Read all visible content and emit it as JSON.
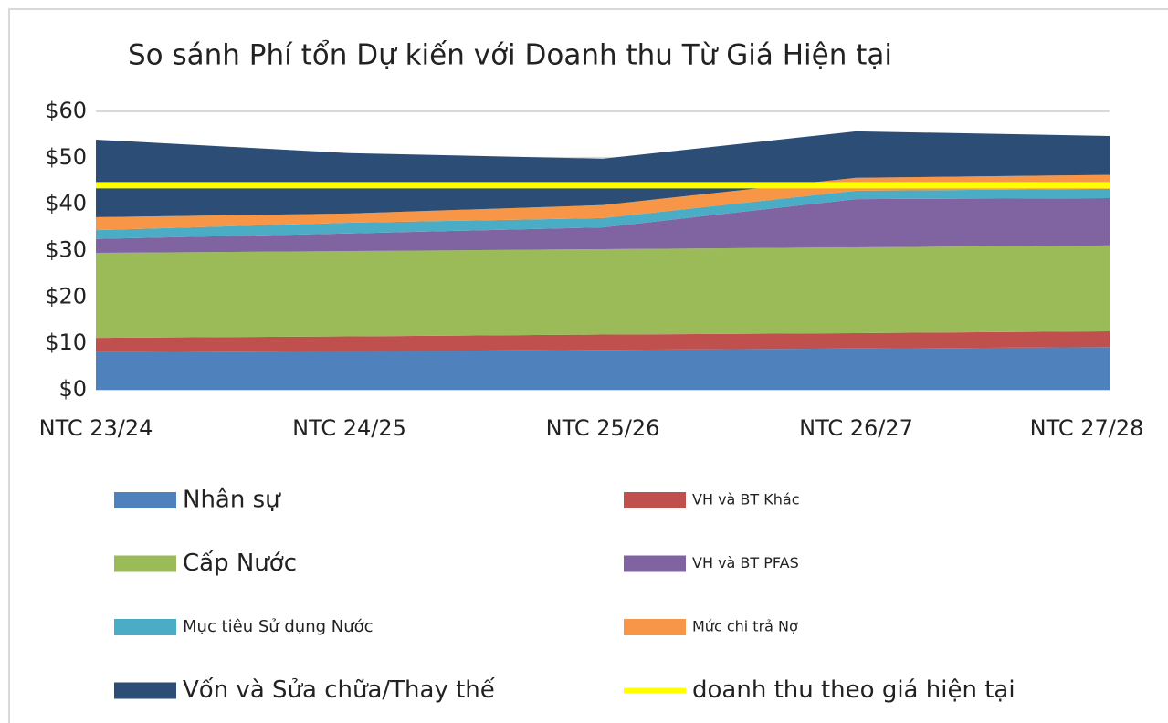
{
  "chart_data": {
    "type": "area",
    "stacked": true,
    "title": "So sánh Phí tổn Dự kiến với Doanh thu Từ Giá Hiện tại",
    "categories": [
      "NTC 23/24",
      "NTC 24/25",
      "NTC 25/26",
      "NTC 26/27",
      "NTC 27/28"
    ],
    "ylim": [
      0,
      60
    ],
    "yticks": [
      {
        "value": 0,
        "label": "$0"
      },
      {
        "value": 10,
        "label": "$10"
      },
      {
        "value": 20,
        "label": "$20"
      },
      {
        "value": 30,
        "label": "$30"
      },
      {
        "value": 40,
        "label": "$40"
      },
      {
        "value": 50,
        "label": "$50"
      },
      {
        "value": 60,
        "label": "$60"
      }
    ],
    "grid": true,
    "legend": "bottom",
    "series": [
      {
        "name": "Nhân sự",
        "color": "#4f81bd",
        "values": [
          8.1,
          8.3,
          8.6,
          8.9,
          9.2
        ]
      },
      {
        "name": "VH và BT Khác",
        "color": "#c0504d",
        "values": [
          3.1,
          3.2,
          3.3,
          3.3,
          3.4
        ]
      },
      {
        "name": "Cấp Nước",
        "color": "#9bbb59",
        "values": [
          18.3,
          18.4,
          18.4,
          18.5,
          18.5
        ]
      },
      {
        "name": "VH và BT PFAS",
        "color": "#8064a2",
        "values": [
          3.0,
          3.8,
          4.7,
          10.4,
          10.2
        ]
      },
      {
        "name": "Mục tiêu Sử dụng Nước",
        "color": "#4bacc6",
        "values": [
          1.9,
          2.3,
          2.0,
          1.8,
          2.0
        ]
      },
      {
        "name": "Mức chi trả Nợ",
        "color": "#f79646",
        "values": [
          2.8,
          2.0,
          2.8,
          2.8,
          3.0
        ]
      },
      {
        "name": "Vốn và Sửa chữa/Thay thế",
        "color": "#2c4d75",
        "values": [
          16.7,
          13.0,
          10.0,
          10.0,
          8.4
        ]
      },
      {
        "name": "doanh thu theo giá hiện tại",
        "color": "#ffff00",
        "type": "line",
        "values": [
          44.1,
          44.1,
          44.1,
          44.1,
          44.1
        ]
      }
    ]
  }
}
